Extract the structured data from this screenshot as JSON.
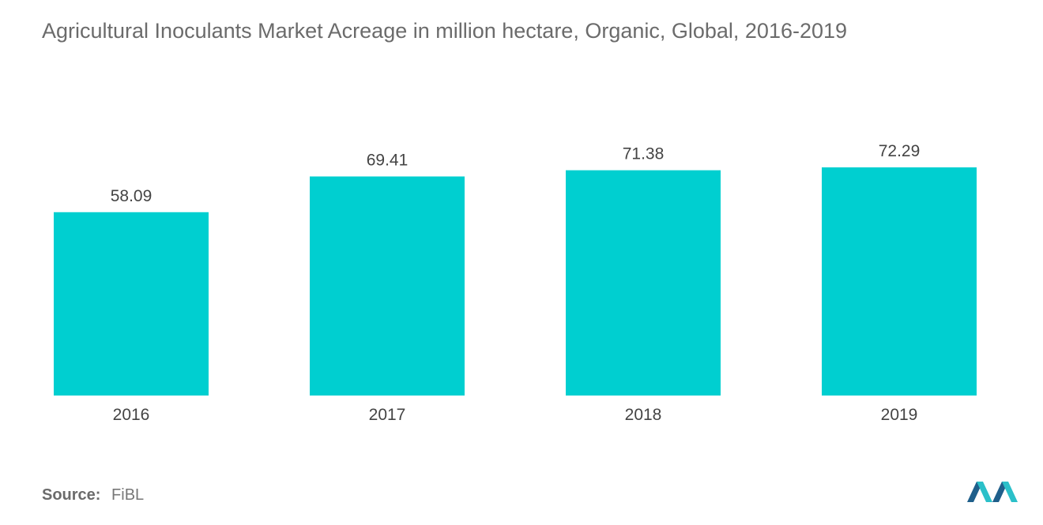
{
  "title": "Agricultural Inoculants Market  Acreage in million hectare, Organic, Global, 2016-2019",
  "source": {
    "label": "Source:",
    "value": "FiBL"
  },
  "logo": {
    "icon": "mordor-intelligence-logo-icon",
    "colors": [
      "#1f5f8b",
      "#2bc0c9"
    ]
  },
  "chart_data": {
    "type": "bar",
    "categories": [
      "2016",
      "2017",
      "2018",
      "2019"
    ],
    "values": [
      58.09,
      69.41,
      71.38,
      72.29
    ],
    "value_labels": [
      "58.09",
      "69.41",
      "71.38",
      "72.29"
    ],
    "ylim": [
      0,
      72.29
    ],
    "grid": false,
    "legend": "none",
    "bar_color": "#00cfd0",
    "label_color": "#444444"
  }
}
